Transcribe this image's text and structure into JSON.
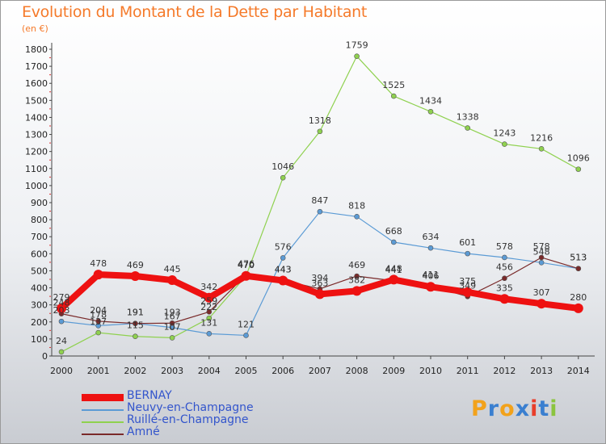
{
  "header": {
    "title": "Evolution du Montant de la Dette par Habitant",
    "subtitle": "(en €)"
  },
  "logo": {
    "text": "Proxiti"
  },
  "chart_data": {
    "type": "line",
    "title": "Evolution du Montant de la Dette par Habitant",
    "subtitle": "(en €)",
    "x": [
      "2000",
      "2001",
      "2002",
      "2003",
      "2004",
      "2005",
      "2006",
      "2007",
      "2008",
      "2009",
      "2010",
      "2011",
      "2012",
      "2013",
      "2014"
    ],
    "y_ticks": [
      "0",
      "100",
      "200",
      "300",
      "400",
      "500",
      "600",
      "700",
      "800",
      "900",
      "1000",
      "1100",
      "1200",
      "1300",
      "1400",
      "1500",
      "1600",
      "1700",
      "1800"
    ],
    "ylim": [
      0,
      1800
    ],
    "grid": false,
    "legend_position": "bottom-left",
    "series": [
      {
        "name": "BERNAY",
        "color": "#ee1111",
        "values": [
          279,
          478,
          469,
          445,
          342,
          470,
          443,
          363,
          382,
          448,
          406,
          375,
          335,
          307,
          280
        ],
        "labels": [
          "279",
          "478",
          "469",
          "445",
          "342",
          "470",
          "443",
          "363",
          "382",
          "448",
          "406",
          "375",
          "335",
          "307",
          "280"
        ]
      },
      {
        "name": "Neuvy-en-Champagne",
        "color": "#5b9bd5",
        "values": [
          203,
          178,
          191,
          167,
          131,
          121,
          576,
          847,
          818,
          668,
          634,
          601,
          578,
          548,
          513
        ],
        "labels": [
          "203",
          "178",
          "191",
          "167",
          "131",
          "121",
          "576",
          "847",
          "818",
          "668",
          "634",
          "601",
          "578",
          "548",
          "513"
        ]
      },
      {
        "name": "Ruillé-en-Champagne",
        "color": "#8fd14f",
        "values": [
          24,
          137,
          115,
          107,
          222,
          470,
          1046,
          1318,
          1759,
          1525,
          1434,
          1338,
          1243,
          1216,
          1096
        ],
        "labels": [
          "24",
          "137",
          "115",
          "107",
          "222",
          "470",
          "1046",
          "1318",
          "1759",
          "1525",
          "1434",
          "1338",
          "1243",
          "1216",
          "1096"
        ]
      },
      {
        "name": "Amné",
        "color": "#7a2a2a",
        "values": [
          248,
          204,
          191,
          193,
          259,
          476,
          443,
          394,
          469,
          441,
          411,
          349,
          456,
          578,
          513
        ],
        "labels": [
          "248",
          "204",
          "191",
          "193",
          "259",
          "476",
          "443",
          "394",
          "469",
          "441",
          "411",
          "349",
          "456",
          "578",
          "513"
        ]
      }
    ]
  }
}
